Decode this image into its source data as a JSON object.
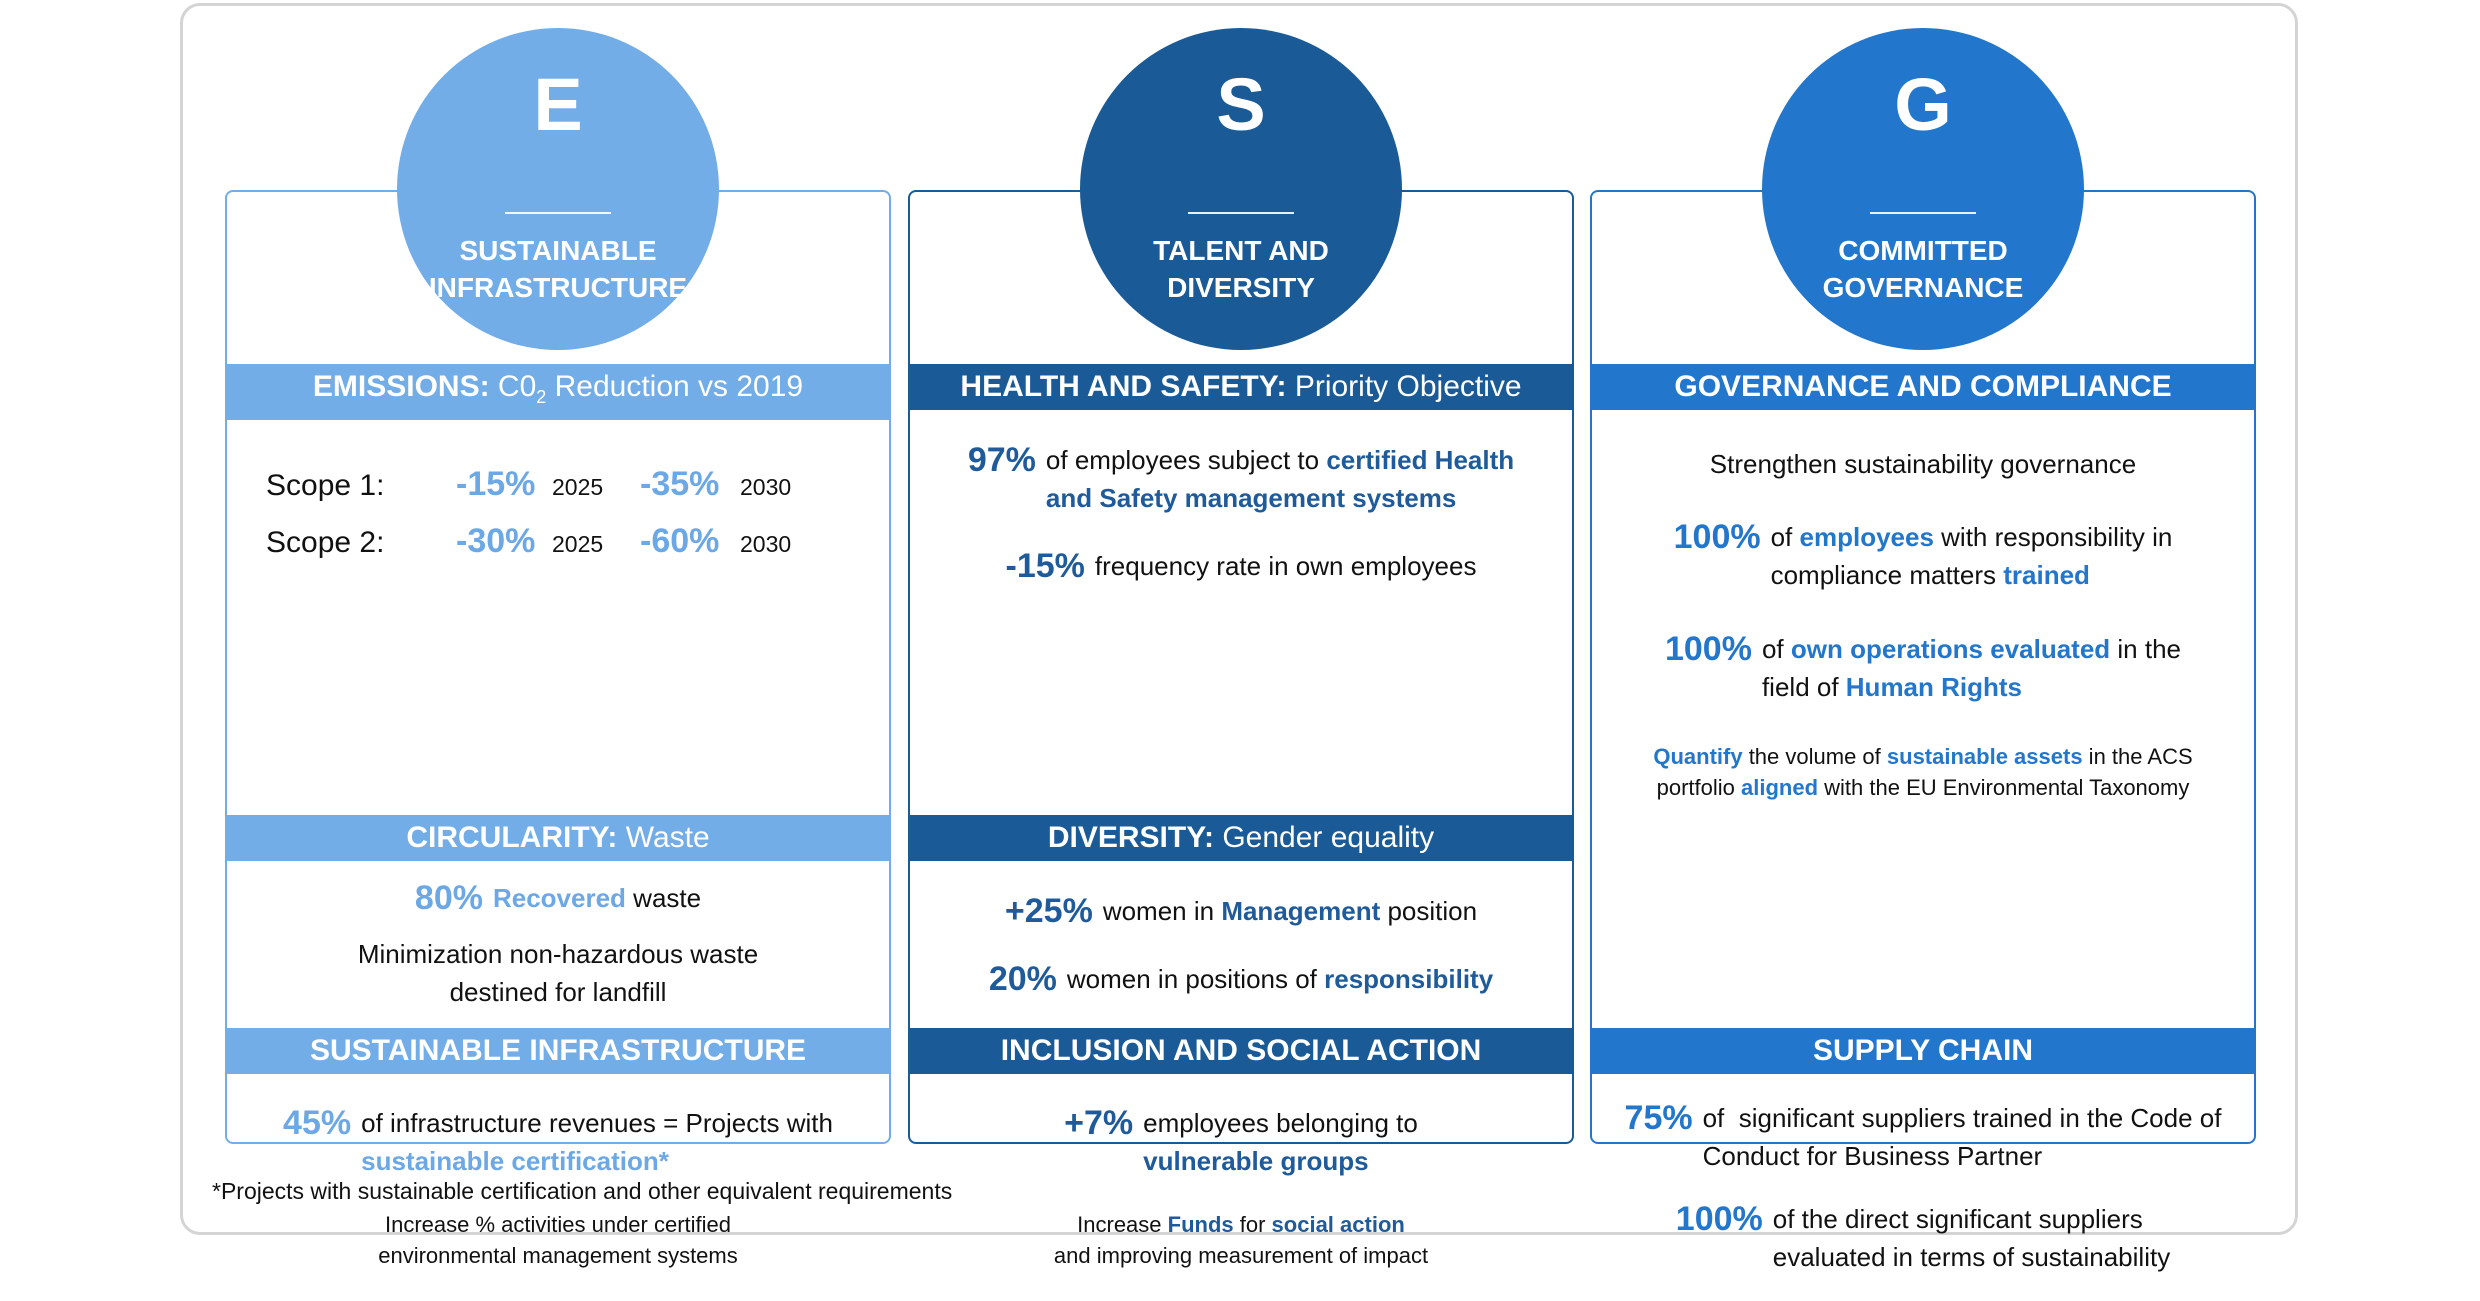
{
  "columns": [
    {
      "letter": "E",
      "title_lines": [
        "SUSTAINABLE",
        "INFRASTRUCTURE"
      ],
      "color": "#72ADE7",
      "accent": "#6CA8E6",
      "sections": [
        {
          "header_bold": "EMISSIONS:",
          "header_rest": " C0",
          "header_sub": "2",
          "header_rest2": " Reduction vs 2019",
          "emissions": [
            {
              "label": "Scope 1:",
              "v1": "-15%",
              "y1": "2025",
              "v2": "-35%",
              "y2": "2030"
            },
            {
              "label": "Scope 2:",
              "v1": "-30%",
              "y1": "2025",
              "v2": "-60%",
              "y2": "2030"
            }
          ]
        },
        {
          "header_bold": "CIRCULARITY:",
          "header_rest": " Waste",
          "blocks": [
            {
              "num": "80%",
              "lines": [
                [
                  {
                    "t": "Recovered",
                    "b": true
                  },
                  {
                    "t": " waste"
                  }
                ]
              ]
            },
            {
              "center": true,
              "lines": [
                [
                  {
                    "t": "Minimization non-hazardous waste"
                  }
                ],
                [
                  {
                    "t": "destined for landfill"
                  }
                ]
              ]
            }
          ]
        },
        {
          "header_bold": "SUSTAINABLE INFRASTRUCTURE",
          "header_rest": "",
          "blocks": [
            {
              "num": "45%",
              "lines": [
                [
                  {
                    "t": "of infrastructure revenues = Projects with"
                  }
                ],
                [
                  {
                    "t": "sustainable certification*",
                    "b": true
                  }
                ]
              ]
            },
            {
              "center": true,
              "small": true,
              "lines": [
                [
                  {
                    "t": "Increase % activities under certified"
                  }
                ],
                [
                  {
                    "t": "environmental management systems"
                  }
                ]
              ]
            }
          ]
        }
      ]
    },
    {
      "letter": "S",
      "title_lines": [
        "TALENT AND",
        "DIVERSITY"
      ],
      "color": "#1A5A96",
      "accent": "#1F5B9B",
      "sections": [
        {
          "header_bold": "HEALTH AND SAFETY:",
          "header_rest": " Priority Objective",
          "blocks": [
            {
              "num": "97%",
              "lines": [
                [
                  {
                    "t": "of employees subject to "
                  },
                  {
                    "t": "certified Health",
                    "b": true
                  }
                ],
                [
                  {
                    "t": "and Safety management systems",
                    "b": true
                  }
                ]
              ]
            },
            {
              "num": "-15%",
              "lines": [
                [
                  {
                    "t": "frequency rate in own employees"
                  }
                ]
              ]
            }
          ]
        },
        {
          "header_bold": "DIVERSITY:",
          "header_rest": " Gender equality",
          "blocks": [
            {
              "num": "+25%",
              "lines": [
                [
                  {
                    "t": "women in "
                  },
                  {
                    "t": "Management",
                    "b": true
                  },
                  {
                    "t": " position"
                  }
                ]
              ]
            },
            {
              "num": "20%",
              "lines": [
                [
                  {
                    "t": "women in positions of "
                  },
                  {
                    "t": "responsibility",
                    "b": true
                  }
                ]
              ]
            }
          ]
        },
        {
          "header_bold": "INCLUSION AND SOCIAL ACTION",
          "header_rest": "",
          "blocks": [
            {
              "num": "+7%",
              "lines": [
                [
                  {
                    "t": "employees belonging to"
                  }
                ],
                [
                  {
                    "t": "vulnerable groups",
                    "b": true
                  }
                ]
              ]
            },
            {
              "center": true,
              "small": true,
              "lines": [
                [
                  {
                    "t": "Increase "
                  },
                  {
                    "t": "Funds",
                    "b": true
                  },
                  {
                    "t": " for "
                  },
                  {
                    "t": "social action",
                    "b": true
                  }
                ],
                [
                  {
                    "t": "and improving measurement of impact"
                  }
                ]
              ]
            }
          ]
        }
      ]
    },
    {
      "letter": "G",
      "title_lines": [
        "COMMITTED",
        "GOVERNANCE"
      ],
      "color": "#2277CC",
      "accent": "#2277CC",
      "sections": [
        {
          "header_bold": "GOVERNANCE AND COMPLIANCE",
          "header_rest": "",
          "blocks": [
            {
              "center": true,
              "lines": [
                [
                  {
                    "t": "Strengthen sustainability governance"
                  }
                ]
              ]
            },
            {
              "num": "100%",
              "lines": [
                [
                  {
                    "t": "of "
                  },
                  {
                    "t": "employees",
                    "b": true
                  },
                  {
                    "t": " with responsibility in"
                  }
                ],
                [
                  {
                    "t": "compliance matters "
                  },
                  {
                    "t": "trained",
                    "b": true
                  }
                ]
              ]
            },
            {
              "num": "100%",
              "lines": [
                [
                  {
                    "t": "of "
                  },
                  {
                    "t": "own operations evaluated",
                    "b": true
                  },
                  {
                    "t": " in the"
                  }
                ],
                [
                  {
                    "t": "field of "
                  },
                  {
                    "t": "Human Rights",
                    "b": true
                  }
                ]
              ]
            },
            {
              "center": true,
              "small": true,
              "lines": [
                [
                  {
                    "t": "Quantify",
                    "b": true
                  },
                  {
                    "t": " the volume of "
                  },
                  {
                    "t": "sustainable assets",
                    "b": true
                  },
                  {
                    "t": " in the ACS"
                  }
                ],
                [
                  {
                    "t": "portfolio "
                  },
                  {
                    "t": "aligned",
                    "b": true
                  },
                  {
                    "t": " with the EU Environmental Taxonomy"
                  }
                ]
              ]
            }
          ]
        },
        {
          "header_bold": "SUPPLY CHAIN",
          "header_rest": "",
          "blocks": [
            {
              "num": "75%",
              "lines": [
                [
                  {
                    "t": "of  significant suppliers trained in the Code of"
                  }
                ],
                [
                  {
                    "t": "Conduct for Business Partner"
                  }
                ]
              ]
            },
            {
              "num": "100%",
              "lines": [
                [
                  {
                    "t": "of the direct significant suppliers"
                  }
                ],
                [
                  {
                    "t": "evaluated in terms of sustainability"
                  }
                ]
              ]
            }
          ]
        }
      ]
    }
  ],
  "footnote": "*Projects with sustainable certification and other equivalent requirements"
}
